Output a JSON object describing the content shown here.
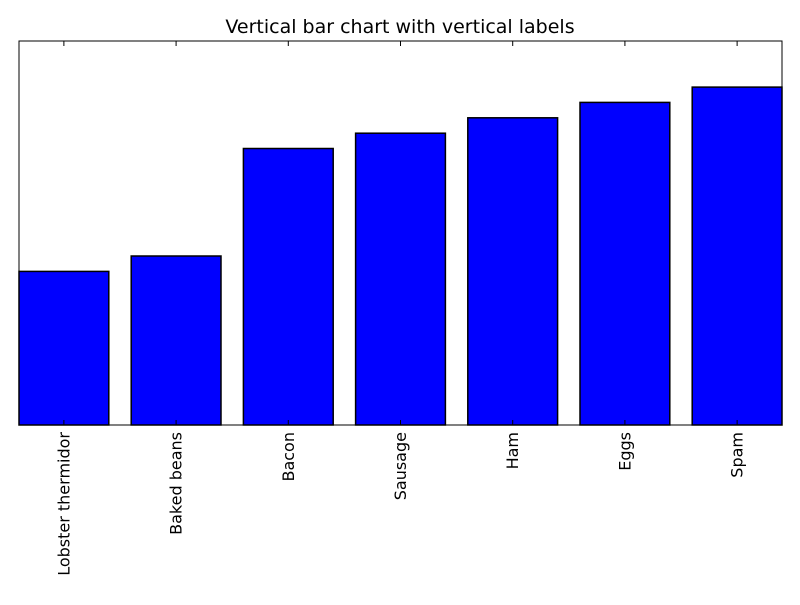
{
  "chart_data": {
    "type": "bar",
    "title": "Vertical bar chart with vertical labels",
    "xlabel": "",
    "ylabel": "",
    "categories": [
      "Lobster thermidor",
      "Baked beans",
      "Bacon",
      "Sausage",
      "Ham",
      "Eggs",
      "Spam"
    ],
    "values": [
      1.0,
      1.1,
      1.8,
      1.9,
      2.0,
      2.1,
      2.2
    ],
    "ylim": [
      0,
      2.5
    ],
    "y_ticks_visible": false,
    "x_tick_label_rotation": "vertical",
    "grid": false,
    "bar_color": "#0000ff",
    "bar_edge_color": "#000000"
  }
}
